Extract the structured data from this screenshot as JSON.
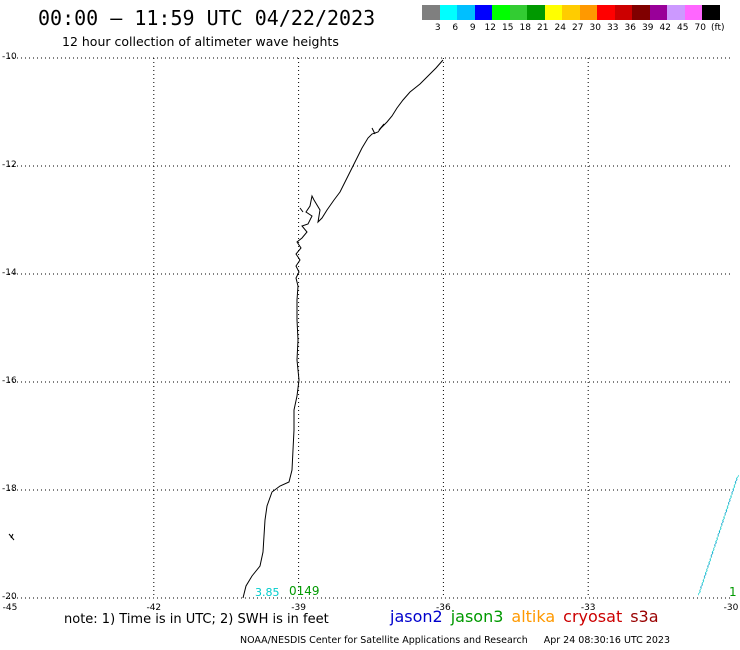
{
  "header": {
    "title": "00:00 – 11:59 UTC 04/22/2023",
    "subtitle": "12 hour collection of altimeter wave heights"
  },
  "colorbar": {
    "colors": [
      "#7f7f7f",
      "#00ffff",
      "#00bfff",
      "#0000ff",
      "#00ff00",
      "#33cc33",
      "#009900",
      "#ffff00",
      "#ffcc00",
      "#ff9900",
      "#ff0000",
      "#cc0000",
      "#800000",
      "#990099",
      "#cc99ff",
      "#ff66ff",
      "#000000"
    ],
    "labels": [
      "3",
      "6",
      "9",
      "12",
      "15",
      "18",
      "21",
      "24",
      "27",
      "30",
      "33",
      "36",
      "39",
      "42",
      "45",
      "70",
      "(ft)"
    ]
  },
  "axes": {
    "lon_ticks": [
      "-45",
      "-42",
      "-39",
      "-36",
      "-33",
      "-30"
    ],
    "lat_ticks": [
      "-10",
      "-12",
      "-14",
      "-16",
      "-18",
      "-20"
    ],
    "lon_range": [
      -45,
      -30
    ],
    "lat_range": [
      -20,
      -10
    ]
  },
  "observations": [
    {
      "value": "3.85",
      "color": "#00cccc"
    },
    {
      "value": "0149",
      "color": "#009900"
    },
    {
      "value": "1",
      "color": "#009900"
    }
  ],
  "note": "note: 1) Time is in UTC; 2) SWH is in feet",
  "satellites": [
    {
      "name": "jason2",
      "color": "#0000cc"
    },
    {
      "name": "jason3",
      "color": "#009900"
    },
    {
      "name": "altika",
      "color": "#ff9900"
    },
    {
      "name": "cryosat",
      "color": "#cc0000"
    },
    {
      "name": "s3a",
      "color": "#990000"
    }
  ],
  "footer": {
    "credit": "NOAA/NESDIS Center for Satellite Applications and Research",
    "timestamp": "Apr 24 08:30:16 UTC 2023"
  }
}
